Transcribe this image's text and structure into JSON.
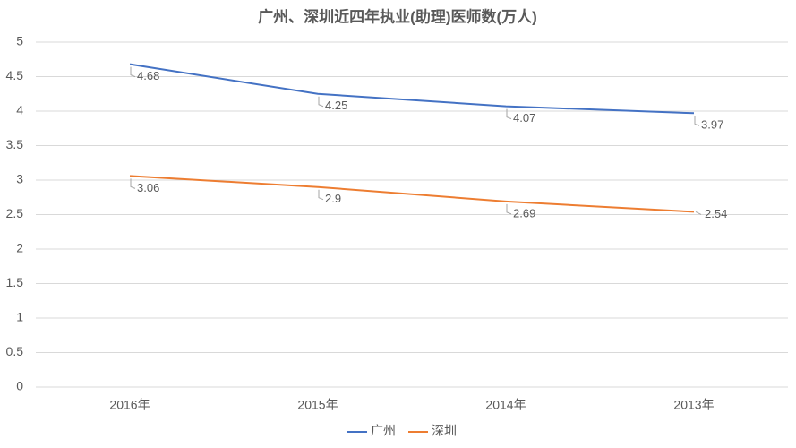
{
  "chart_data": {
    "type": "line",
    "title": "广州、深圳近四年执业(助理)医师数(万人)",
    "categories": [
      "2016年",
      "2015年",
      "2014年",
      "2013年"
    ],
    "series": [
      {
        "name": "广州",
        "color": "#4472c4",
        "values": [
          4.68,
          4.25,
          4.07,
          3.97
        ]
      },
      {
        "name": "深圳",
        "color": "#ed7d31",
        "values": [
          3.06,
          2.9,
          2.69,
          2.54
        ]
      }
    ],
    "ylim": [
      0,
      5
    ],
    "yticks": [
      0,
      0.5,
      1,
      1.5,
      2,
      2.5,
      3,
      3.5,
      4,
      4.5,
      5
    ],
    "grid": true,
    "legend": "bottom"
  }
}
